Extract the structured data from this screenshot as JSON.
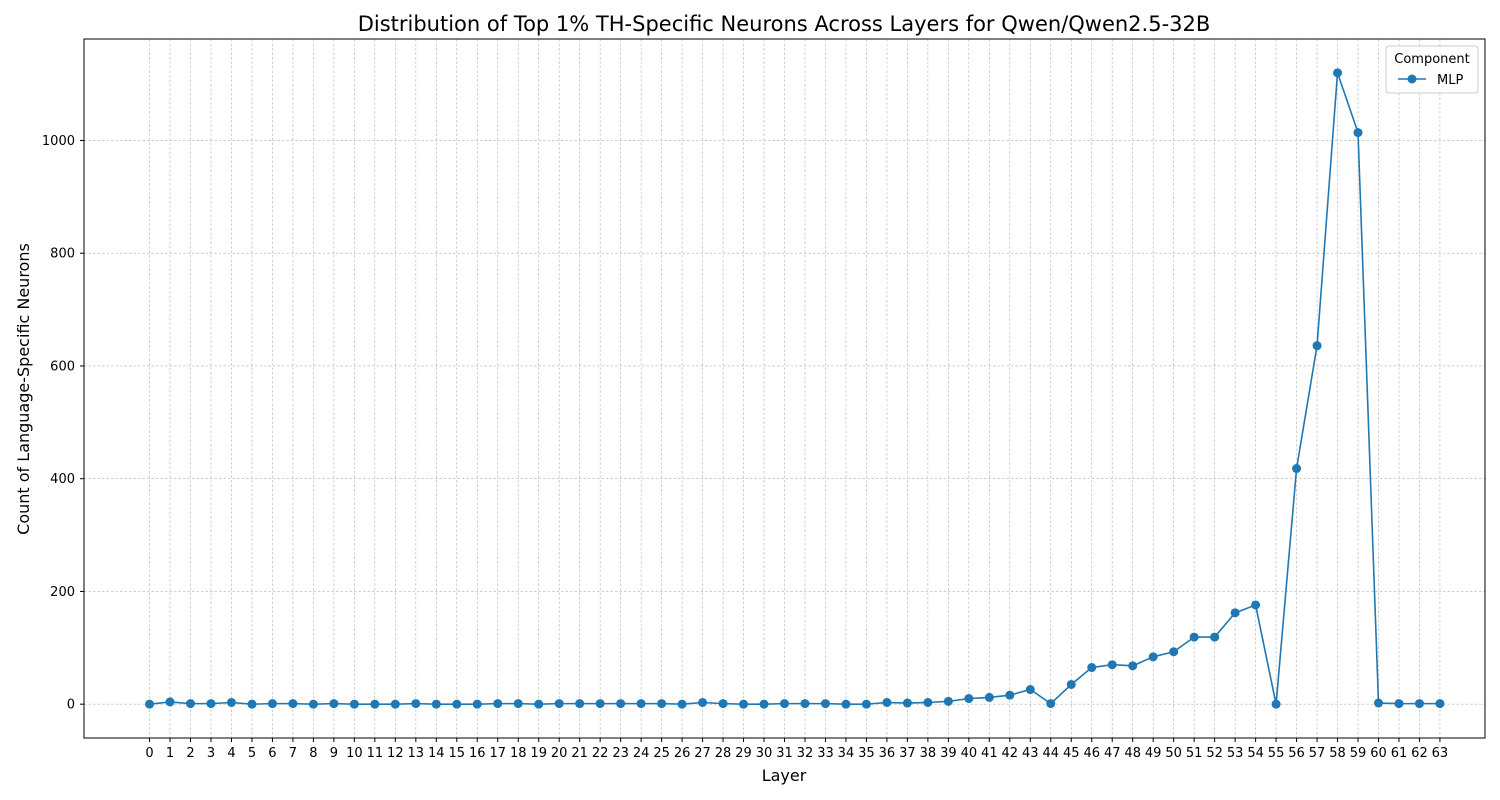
{
  "chart_data": {
    "type": "line",
    "title": "Distribution of Top 1% TH-Specific Neurons Across Layers for Qwen/Qwen2.5-32B",
    "xlabel": "Layer",
    "ylabel": "Count of Language-Specific Neurons",
    "x": [
      0,
      1,
      2,
      3,
      4,
      5,
      6,
      7,
      8,
      9,
      10,
      11,
      12,
      13,
      14,
      15,
      16,
      17,
      18,
      19,
      20,
      21,
      22,
      23,
      24,
      25,
      26,
      27,
      28,
      29,
      30,
      31,
      32,
      33,
      34,
      35,
      36,
      37,
      38,
      39,
      40,
      41,
      42,
      43,
      44,
      45,
      46,
      47,
      48,
      49,
      50,
      51,
      52,
      53,
      54,
      55,
      56,
      57,
      58,
      59,
      60,
      61,
      62,
      63
    ],
    "xticks": [
      "0",
      "1",
      "2",
      "3",
      "4",
      "5",
      "6",
      "7",
      "8",
      "9",
      "10",
      "11",
      "12",
      "13",
      "14",
      "15",
      "16",
      "17",
      "18",
      "19",
      "20",
      "21",
      "22",
      "23",
      "24",
      "25",
      "26",
      "27",
      "28",
      "29",
      "30",
      "31",
      "32",
      "33",
      "34",
      "35",
      "36",
      "37",
      "38",
      "39",
      "40",
      "41",
      "42",
      "43",
      "44",
      "45",
      "46",
      "47",
      "48",
      "49",
      "50",
      "51",
      "52",
      "53",
      "54",
      "55",
      "56",
      "57",
      "58",
      "59",
      "60",
      "61",
      "62",
      "63"
    ],
    "yticks": [
      "0",
      "200",
      "400",
      "600",
      "800",
      "1000"
    ],
    "ylim": [
      -60,
      1180
    ],
    "xlim": [
      -3.2,
      65.2
    ],
    "grid": true,
    "legend": {
      "title": "Component",
      "placement": "top-right"
    },
    "series": [
      {
        "name": "MLP",
        "color": "#1f77b4",
        "values": [
          0,
          4,
          1,
          1,
          3,
          0,
          1,
          1,
          0,
          1,
          0,
          0,
          0,
          1,
          0,
          0,
          0,
          1,
          1,
          0,
          1,
          1,
          1,
          1,
          1,
          1,
          0,
          3,
          1,
          0,
          0,
          1,
          1,
          1,
          0,
          0,
          3,
          2,
          3,
          5,
          10,
          12,
          16,
          26,
          1,
          35,
          65,
          70,
          68,
          84,
          93,
          119,
          119,
          162,
          176,
          0,
          418,
          636,
          1120,
          1014,
          2,
          1,
          1,
          1
        ]
      }
    ]
  }
}
